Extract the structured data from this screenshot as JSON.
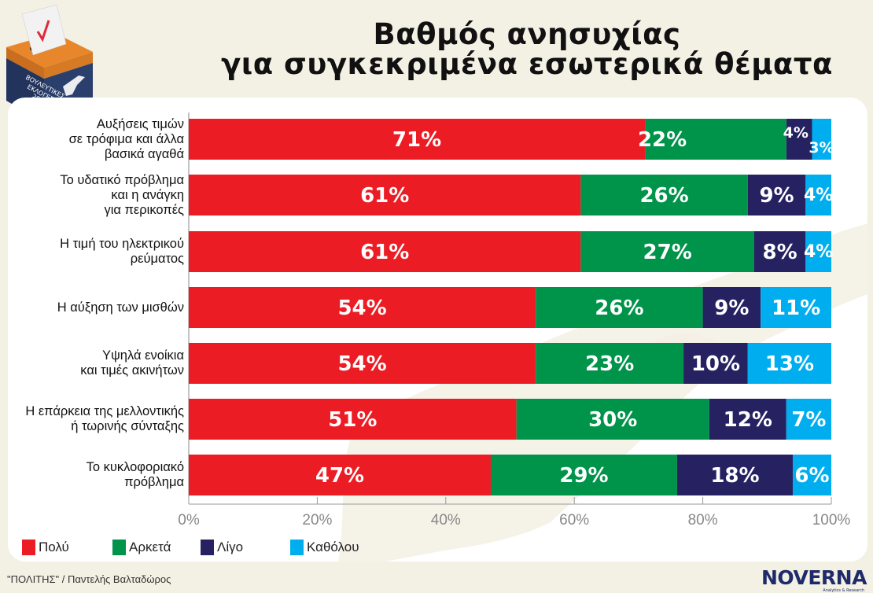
{
  "title": {
    "line1": "Βαθμός ανησυχίας",
    "line2": "για συγκεκριμένα εσωτερικά θέματα"
  },
  "badge": {
    "text_lines": [
      "ΒΟΥΛΕΥΤΙΚΕΣ",
      "ΕΚΛΟΓΕΣ",
      "2026"
    ],
    "icon": "ballot-box-icon"
  },
  "colors": {
    "polu": "#ec1c24",
    "arketa": "#00934a",
    "ligo": "#262262",
    "katholou": "#00aeef",
    "background": "#f3f0e4"
  },
  "chart_data": {
    "type": "bar",
    "orientation": "horizontal",
    "stacked": true,
    "title": "Βαθμός ανησυχίας για συγκεκριμένα εσωτερικά θέματα",
    "categories": [
      [
        "Αυξήσεις τιμών",
        "σε τρόφιμα και άλλα",
        "βασικά αγαθά"
      ],
      [
        "Το υδατικό πρόβλημα",
        "και η ανάγκη",
        "για περικοπές"
      ],
      [
        "Η τιμή του ηλεκτρικού",
        "ρεύματος"
      ],
      [
        "Η αύξηση των μισθών"
      ],
      [
        "Υψηλά ενοίκια",
        "και τιμές ακινήτων"
      ],
      [
        "Η επάρκεια της μελλοντικής",
        "ή τωρινής σύνταξης"
      ],
      [
        "Το κυκλοφοριακό",
        "πρόβλημα"
      ]
    ],
    "series": [
      {
        "name": "Πολύ",
        "color": "#ec1c24",
        "values": [
          71,
          61,
          61,
          54,
          54,
          51,
          47
        ]
      },
      {
        "name": "Αρκετά",
        "color": "#00934a",
        "values": [
          22,
          26,
          27,
          26,
          23,
          30,
          29
        ]
      },
      {
        "name": "Λίγο",
        "color": "#262262",
        "values": [
          4,
          9,
          8,
          9,
          10,
          12,
          18
        ]
      },
      {
        "name": "Καθόλου",
        "color": "#00aeef",
        "values": [
          3,
          4,
          4,
          11,
          13,
          7,
          6
        ]
      }
    ],
    "xlim": [
      0,
      100
    ],
    "xticks": [
      "0%",
      "20%",
      "40%",
      "60%",
      "80%",
      "100%"
    ],
    "xtick_values": [
      0,
      20,
      40,
      60,
      80,
      100
    ],
    "value_suffix": "%",
    "legend_position": "bottom-left",
    "grid": false
  },
  "legend": [
    "Πολύ",
    "Αρκετά",
    "Λίγο",
    "Καθόλου"
  ],
  "footer": {
    "credit": "\"ΠΟΛΙΤΗΣ\" / Παντελής Βαλταδώρος"
  },
  "logo": {
    "name": "NOVERNA",
    "tagline": "Analytics & Research"
  }
}
